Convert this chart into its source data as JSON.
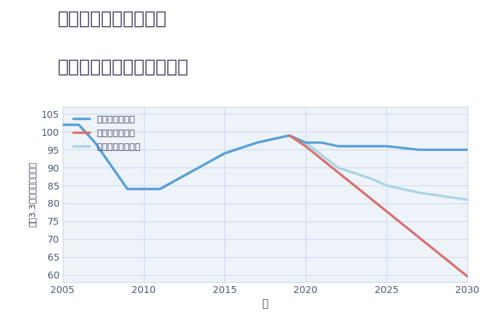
{
  "title_line1": "奈良県橿原市栄和町の",
  "title_line2": "中古マンションの価格推移",
  "xlabel": "年",
  "ylabel": "坪（3.3㎡）単価（万円）",
  "xlim": [
    2005,
    2030
  ],
  "ylim": [
    58,
    107
  ],
  "yticks": [
    60,
    65,
    70,
    75,
    80,
    85,
    90,
    95,
    100,
    105
  ],
  "xticks": [
    2005,
    2010,
    2015,
    2020,
    2025,
    2030
  ],
  "good_scenario": {
    "x": [
      2005,
      2006,
      2007,
      2009,
      2010,
      2011,
      2015,
      2017,
      2019,
      2020,
      2021,
      2022,
      2023,
      2024,
      2025,
      2027,
      2030
    ],
    "y": [
      102,
      102,
      97,
      84,
      84,
      84,
      94,
      97,
      99,
      97,
      97,
      96,
      96,
      96,
      96,
      95,
      95
    ],
    "color": "#5aa0d8",
    "linewidth": 2.5,
    "label": "グッドシナリオ"
  },
  "bad_scenario": {
    "x": [
      2019,
      2020,
      2030
    ],
    "y": [
      99,
      96,
      59.5
    ],
    "color": "#d97070",
    "linewidth": 2.5,
    "label": "バッドシナリオ"
  },
  "normal_scenario": {
    "x": [
      2005,
      2006,
      2007,
      2009,
      2010,
      2011,
      2015,
      2017,
      2019,
      2020,
      2022,
      2024,
      2025,
      2027,
      2030
    ],
    "y": [
      102,
      102,
      97,
      84,
      84,
      84,
      94,
      97,
      99,
      97,
      90,
      87,
      85,
      83,
      81
    ],
    "color": "#a8d4e6",
    "linewidth": 2.5,
    "label": "ノーマルシナリオ"
  },
  "bg_color": "#eef3f9",
  "grid_color": "#c8d8ec",
  "title_color": "#3a3a5c",
  "axis_color": "#3a3a5c",
  "tick_color": "#4a5a7a",
  "title_fontsize": 19,
  "tick_fontsize": 10,
  "label_fontsize": 11
}
